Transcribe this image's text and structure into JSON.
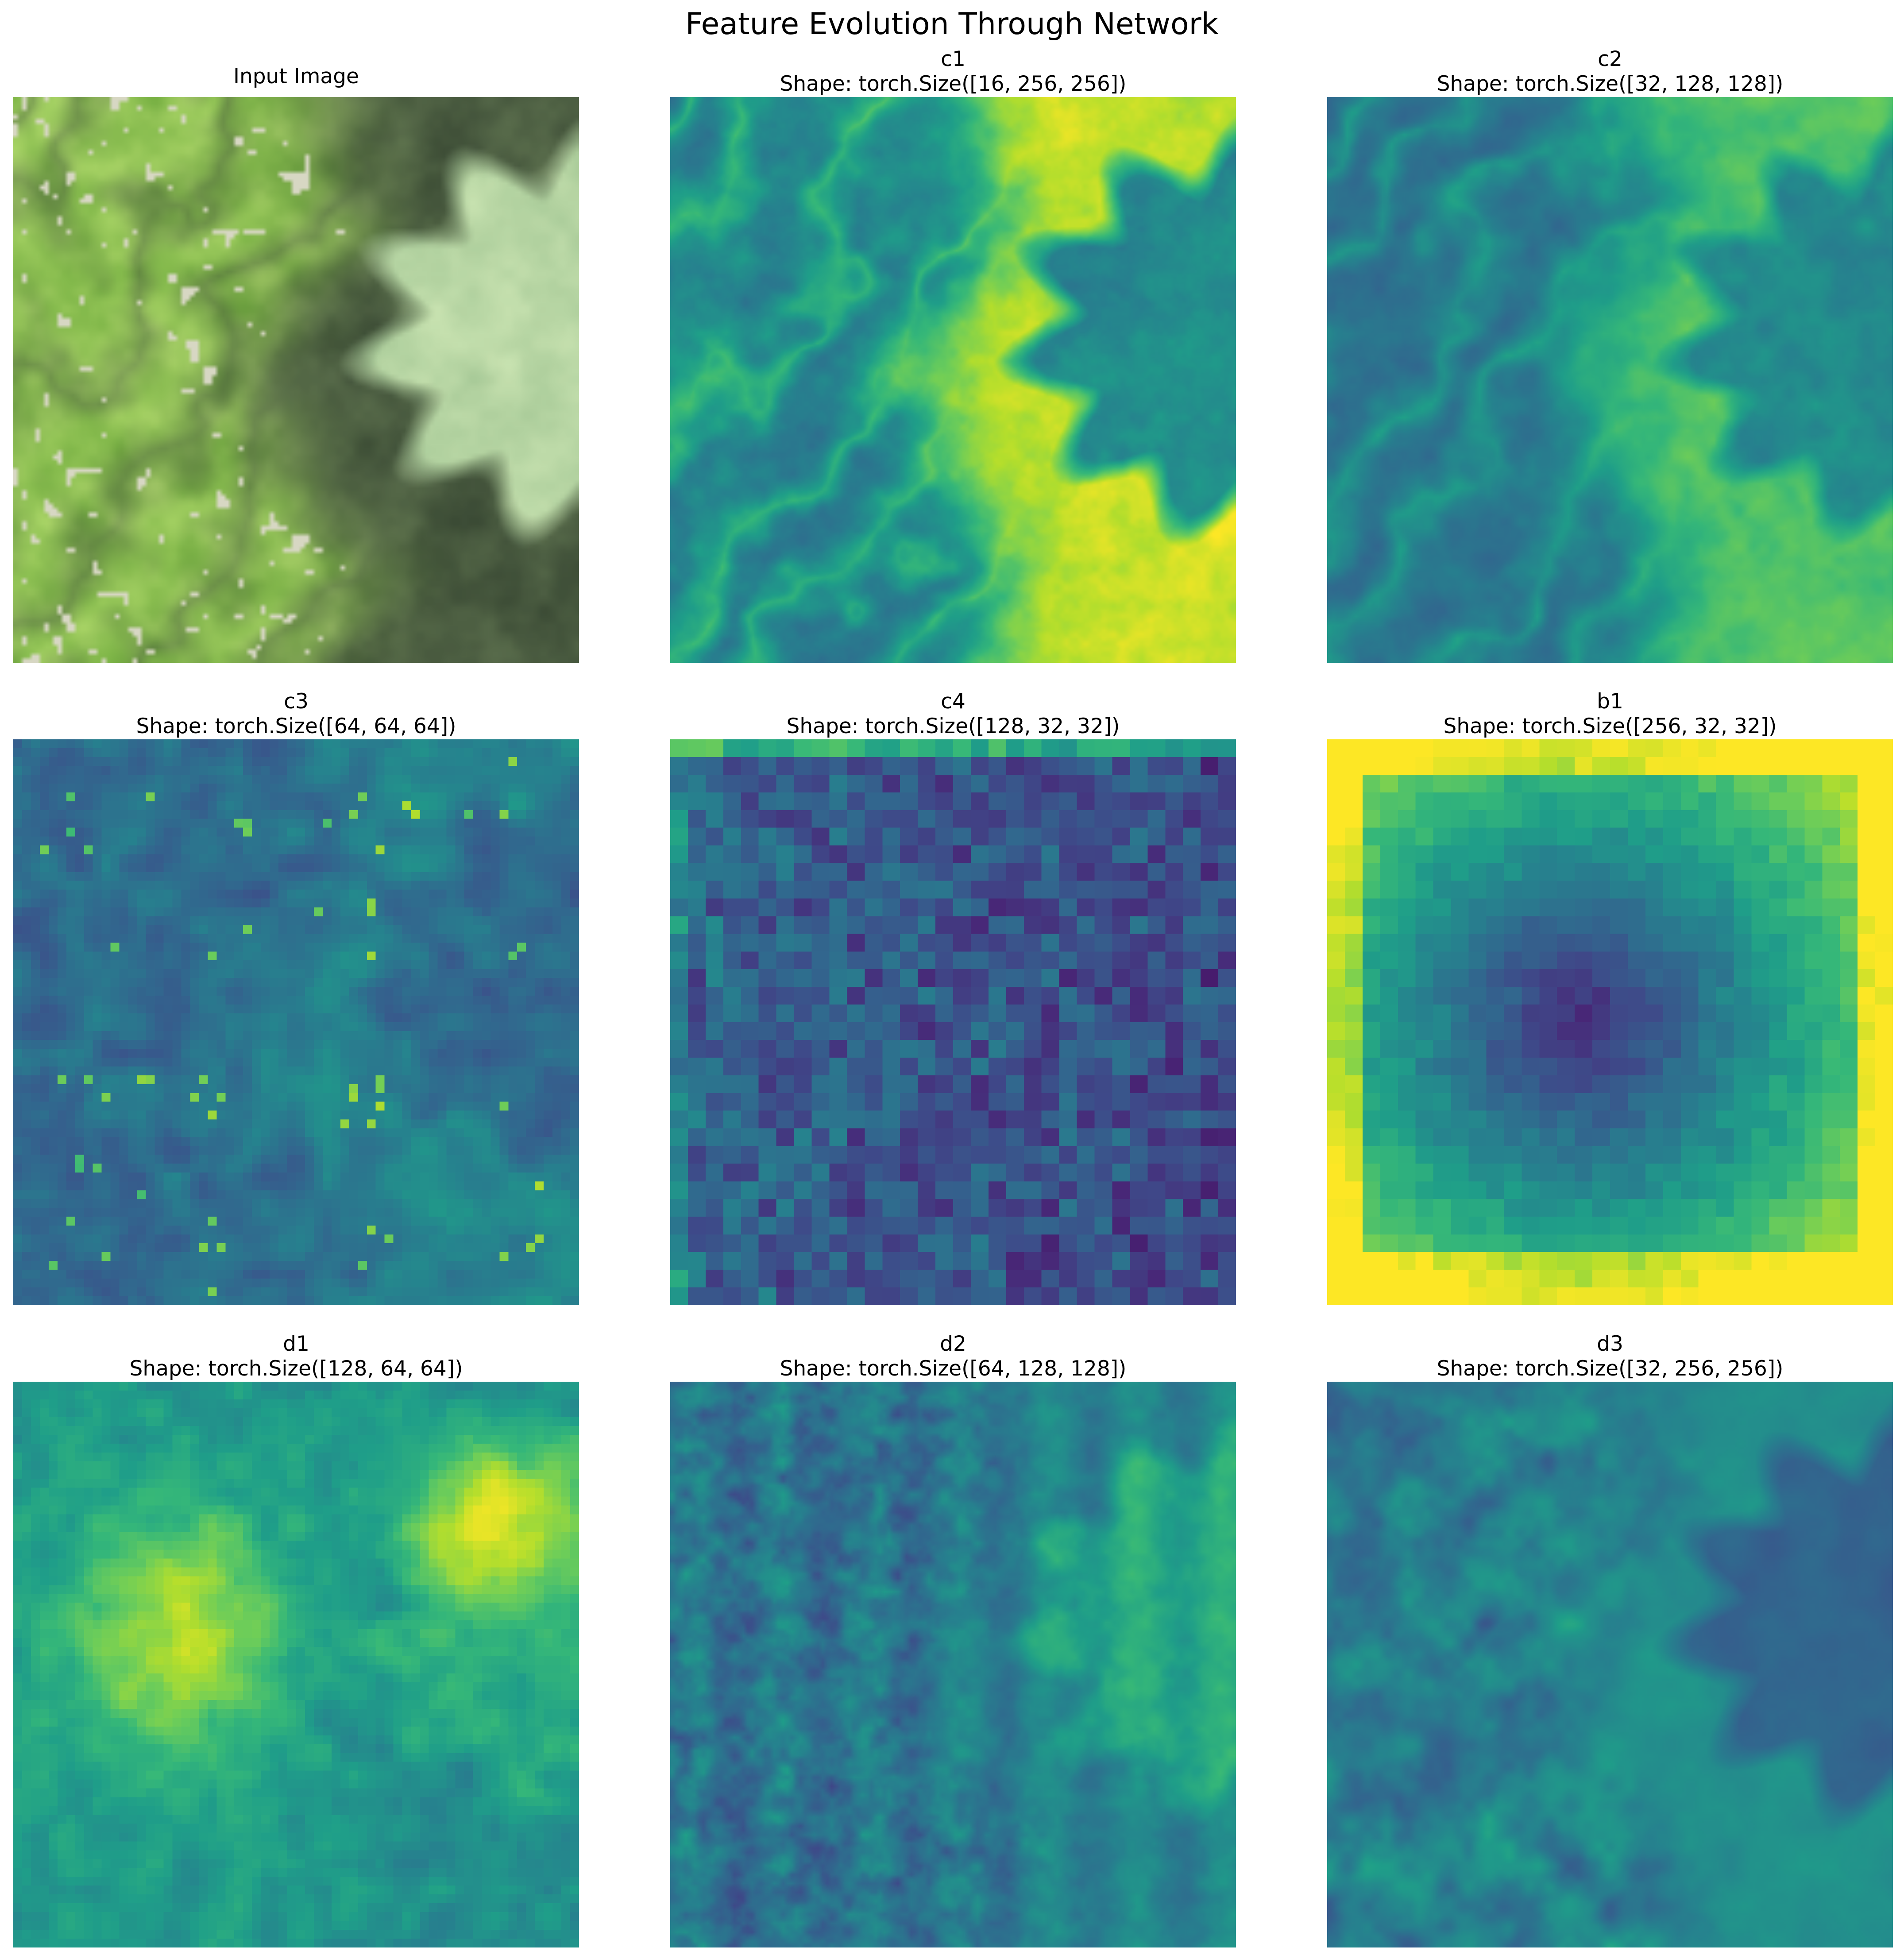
{
  "figure": {
    "title": "Feature Evolution Through Network",
    "panels": [
      {
        "id": "input",
        "name": "Input Image",
        "shape": "",
        "kind": "photo",
        "colormap": "rgb",
        "grid": 128
      },
      {
        "id": "c1",
        "name": "c1",
        "shape": "Shape: torch.Size([16, 256, 256])",
        "kind": "featuremap",
        "colormap": "viridis",
        "grid": 256
      },
      {
        "id": "c2",
        "name": "c2",
        "shape": "Shape: torch.Size([32, 128, 128])",
        "kind": "featuremap",
        "colormap": "viridis",
        "grid": 128
      },
      {
        "id": "c3",
        "name": "c3",
        "shape": "Shape: torch.Size([64, 64, 64])",
        "kind": "featuremap",
        "colormap": "viridis",
        "grid": 64
      },
      {
        "id": "c4",
        "name": "c4",
        "shape": "Shape: torch.Size([128, 32, 32])",
        "kind": "featuremap",
        "colormap": "viridis",
        "grid": 32
      },
      {
        "id": "b1",
        "name": "b1",
        "shape": "Shape: torch.Size([256, 32, 32])",
        "kind": "featuremap",
        "colormap": "viridis",
        "grid": 32
      },
      {
        "id": "d1",
        "name": "d1",
        "shape": "Shape: torch.Size([128, 64, 64])",
        "kind": "featuremap",
        "colormap": "viridis",
        "grid": 64
      },
      {
        "id": "d2",
        "name": "d2",
        "shape": "Shape: torch.Size([64, 128, 128])",
        "kind": "featuremap",
        "colormap": "viridis",
        "grid": 128
      },
      {
        "id": "d3",
        "name": "d3",
        "shape": "Shape: torch.Size([32, 256, 256])",
        "kind": "featuremap",
        "colormap": "viridis",
        "grid": 256
      }
    ]
  }
}
